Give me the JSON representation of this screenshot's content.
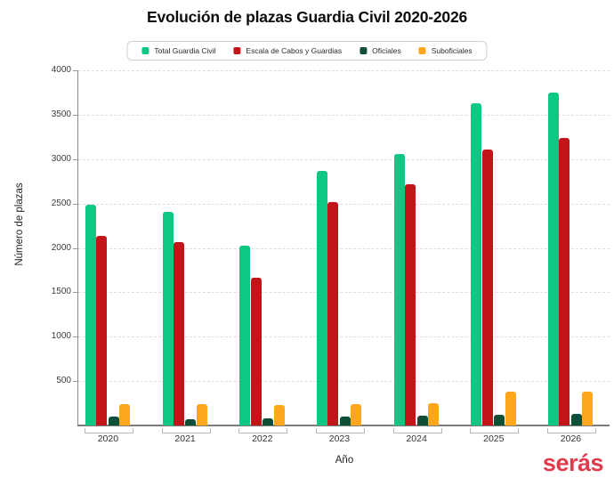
{
  "branding": {
    "logo_text": "serás",
    "logo_color": "#e13a4c"
  },
  "chart_data": {
    "type": "bar",
    "title": "Evolución de plazas Guardia Civil 2020-2026",
    "xlabel": "Año",
    "ylabel": "Número de plazas",
    "categories": [
      "2020",
      "2021",
      "2022",
      "2023",
      "2024",
      "2025",
      "2026"
    ],
    "series": [
      {
        "name": "Total Guardia Civil",
        "color": "#0dc783",
        "values": [
          2490,
          2410,
          2025,
          2870,
          3060,
          3625,
          3750
        ]
      },
      {
        "name": "Escala de Cabos y Guardias",
        "color": "#c1151a",
        "values": [
          2140,
          2070,
          1660,
          2520,
          2720,
          3110,
          3240
        ]
      },
      {
        "name": "Oficiales",
        "color": "#0e4f36",
        "values": [
          100,
          70,
          85,
          100,
          110,
          120,
          130
        ]
      },
      {
        "name": "Suboficiales",
        "color": "#fea71e",
        "values": [
          240,
          245,
          235,
          245,
          250,
          385,
          385
        ]
      }
    ],
    "ylim": [
      0,
      4000
    ],
    "yticks": [
      500,
      1000,
      1500,
      2000,
      2500,
      3000,
      3500,
      4000
    ],
    "grid": "horizontal-dashed",
    "legend_position": "top"
  }
}
